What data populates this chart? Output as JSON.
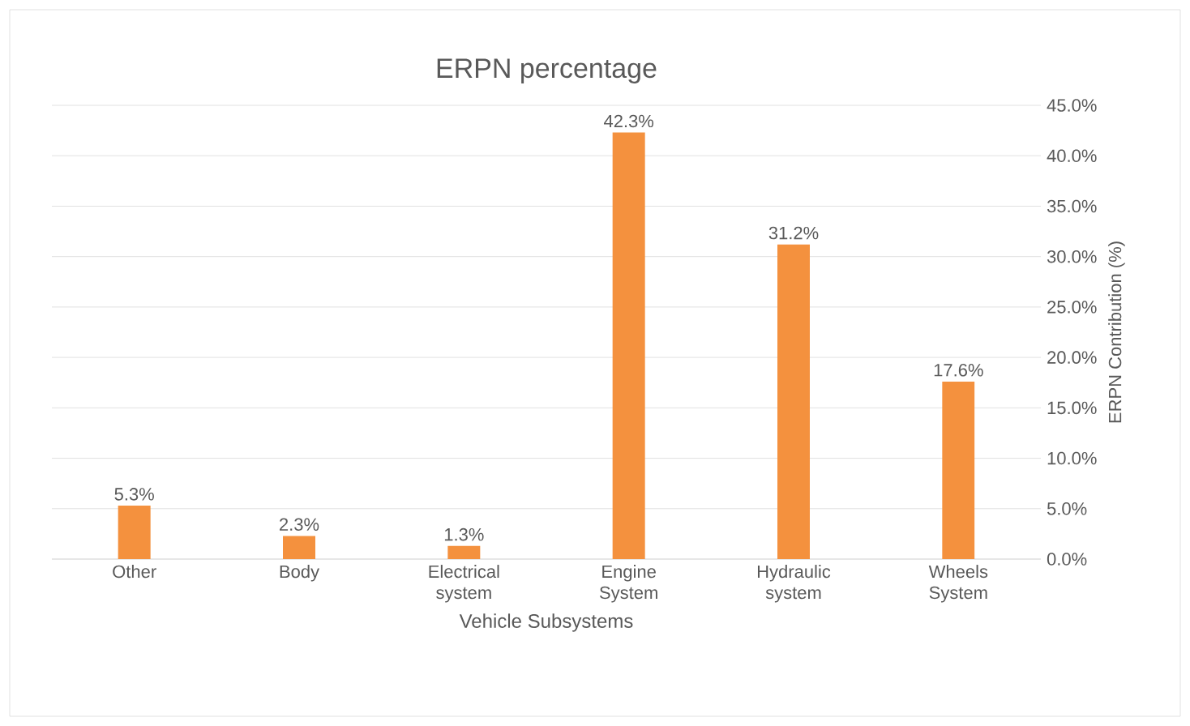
{
  "chart_data": {
    "type": "bar",
    "title": "ERPN percentage",
    "xlabel": "Vehicle Subsystems",
    "ylabel": "ERPN Contribution (%)",
    "categories": [
      "Other",
      "Body",
      "Electrical system",
      "Engine System",
      "Hydraulic system",
      "Wheels System"
    ],
    "values": [
      5.3,
      2.3,
      1.3,
      42.3,
      31.2,
      17.6
    ],
    "value_labels": [
      "5.3%",
      "2.3%",
      "1.3%",
      "42.3%",
      "31.2%",
      "17.6%"
    ],
    "color": "#f4913e",
    "ylim": [
      0,
      45
    ],
    "yticks": [
      {
        "value": 0,
        "label": "0.0%"
      },
      {
        "value": 5,
        "label": "5.0%"
      },
      {
        "value": 10,
        "label": "10.0%"
      },
      {
        "value": 15,
        "label": "15.0%"
      },
      {
        "value": 20,
        "label": "20.0%"
      },
      {
        "value": 25,
        "label": "25.0%"
      },
      {
        "value": 30,
        "label": "30.0%"
      },
      {
        "value": 35,
        "label": "35.0%"
      },
      {
        "value": 40,
        "label": "40.0%"
      },
      {
        "value": 45,
        "label": "45.0%"
      }
    ],
    "grid": "y"
  }
}
